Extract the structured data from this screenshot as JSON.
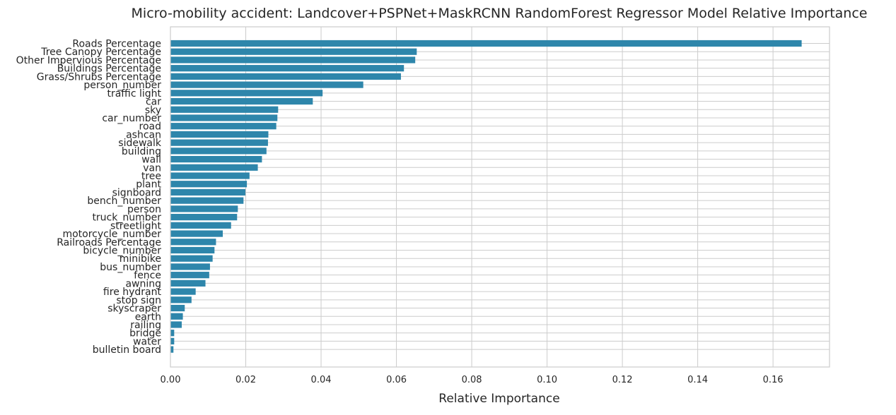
{
  "chart_data": {
    "type": "bar",
    "orientation": "horizontal",
    "title": "Micro-mobility accident: Landcover+PSPNet+MaskRCNN RandomForest Regressor Model Relative Importance",
    "xlabel": "Relative Importance",
    "ylabel": "",
    "xlim": [
      0,
      0.175
    ],
    "x_ticks": [
      "0.00",
      "0.02",
      "0.04",
      "0.06",
      "0.08",
      "0.10",
      "0.12",
      "0.14",
      "0.16"
    ],
    "grid": true,
    "bar_color": "#2e86ab",
    "categories": [
      "Roads Percentage",
      "Tree Canopy Percentage",
      "Other Impervious Percentage",
      "Buildings Percentage",
      "Grass/Shrubs Percentage",
      "person_number",
      "traffic light",
      "car",
      "sky",
      "car_number",
      "road",
      "ashcan",
      "sidewalk",
      "building",
      "wall",
      "van",
      "tree",
      "plant",
      "signboard",
      "bench_number",
      "person",
      "truck_number",
      "streetlight",
      "motorcycle_number",
      "Railroads Percentage",
      "bicycle_number",
      "minibike",
      "bus_number",
      "fence",
      "awning",
      "fire hydrant",
      "stop sign",
      "skyscraper",
      "earth",
      "railing",
      "bridge",
      "water",
      "bulletin board"
    ],
    "values": [
      0.1676,
      0.0654,
      0.065,
      0.062,
      0.0612,
      0.0512,
      0.0404,
      0.0378,
      0.0286,
      0.0284,
      0.0281,
      0.026,
      0.0259,
      0.0255,
      0.0243,
      0.0232,
      0.021,
      0.0203,
      0.0199,
      0.0194,
      0.0179,
      0.0177,
      0.0161,
      0.0139,
      0.0121,
      0.0117,
      0.0112,
      0.0105,
      0.0103,
      0.0093,
      0.0067,
      0.0056,
      0.0038,
      0.0033,
      0.003,
      0.001,
      0.001,
      0.0008
    ]
  }
}
